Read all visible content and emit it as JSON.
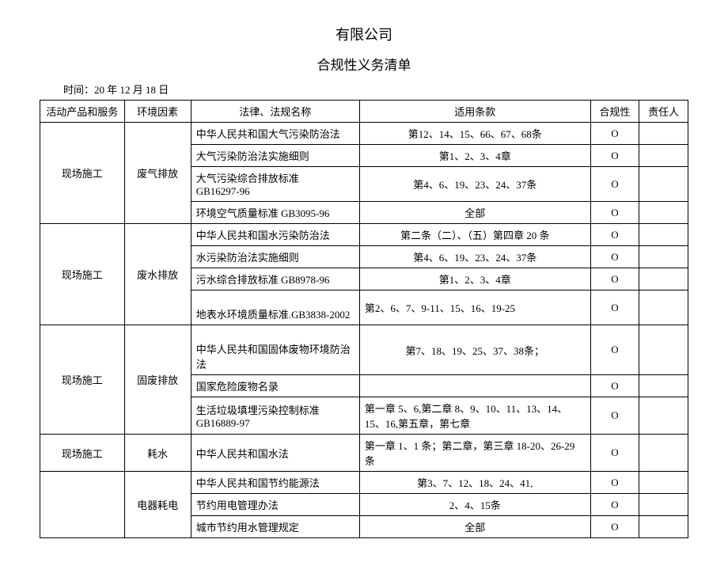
{
  "titles": {
    "main": "有限公司",
    "sub": "合规性义务清单"
  },
  "date_line": "时间：20 年 12 月 18 日",
  "headers": {
    "activity": "活动产品和服务",
    "factor": "环境因素",
    "law": "法律、法规名称",
    "clause": "适用条款",
    "compliance": "合规性",
    "person": "责任人"
  },
  "groups": [
    {
      "activity": "现场施工",
      "factor": "废气排放",
      "rows": [
        {
          "law": "中华人民共和国大气污染防治法",
          "clause": "第12、14、15、66、67、68条",
          "compliance": "O",
          "person": ""
        },
        {
          "law": "大气污染防治法实施细则",
          "clause": "第1、2、3、4章",
          "compliance": "O",
          "person": ""
        },
        {
          "law": "大气污染综合排放标准\nGB16297-96",
          "clause": "第4、6、19、23、24、37条",
          "compliance": "O",
          "person": ""
        },
        {
          "law": "环境空气质量标准 GB3095-96",
          "clause": "全部",
          "compliance": "O",
          "person": ""
        }
      ]
    },
    {
      "activity": "现场施工",
      "factor": "废水排放",
      "rows": [
        {
          "law": "中华人民共和国水污染防治法",
          "clause": "第二条（二）、（五）第四章 20 条",
          "compliance": "O",
          "person": ""
        },
        {
          "law": "水污染防治法实施细则",
          "clause": "第4、6、19、23、24、37条",
          "compliance": "O",
          "person": ""
        },
        {
          "law": "污水综合排放标准 GB8978-96",
          "clause": "第1、2、3、4章",
          "compliance": "O",
          "person": ""
        },
        {
          "law": "\n地表水环境质量标准.GB3838-2002",
          "clause": "第2、6、7、9-11、15、16、19-25",
          "compliance": "O",
          "person": "",
          "clause_align": "left"
        }
      ]
    },
    {
      "activity": "现场施工",
      "factor": "固废排放",
      "rows": [
        {
          "law": "\n中华人民共和国固体废物环境防治法",
          "clause": "第7、18、19、25、37、38条；",
          "compliance": "O",
          "person": ""
        },
        {
          "law": "国家危险废物名录",
          "clause": "",
          "compliance": "O",
          "person": ""
        },
        {
          "law": "生活垃圾填埋污染控制标准\nGB16889-97",
          "clause": "第一章 5、6,第二章 8、9、10、11、13、14、15、16,第五章，第七章",
          "compliance": "O",
          "person": "",
          "clause_align": "left"
        }
      ]
    },
    {
      "activity": "现场施工",
      "factor": "耗水",
      "rows": [
        {
          "law": "中华人民共和国水法\n ",
          "clause": "第一章 1、1 条；第二章，第三章 18-20、26-29 条",
          "compliance": "O",
          "person": "",
          "clause_align": "left"
        }
      ]
    },
    {
      "activity": "",
      "factor": "电器耗电",
      "rows": [
        {
          "law": "中华人民共和国节约能源法",
          "clause": "第3、7、12、18、24、41,",
          "compliance": "O",
          "person": ""
        },
        {
          "law": "节约用电管理办法",
          "clause": "2、4、15条",
          "compliance": "O",
          "person": ""
        },
        {
          "law": "城市节约用水管理规定",
          "clause": "全部",
          "compliance": "O",
          "person": ""
        }
      ]
    }
  ]
}
